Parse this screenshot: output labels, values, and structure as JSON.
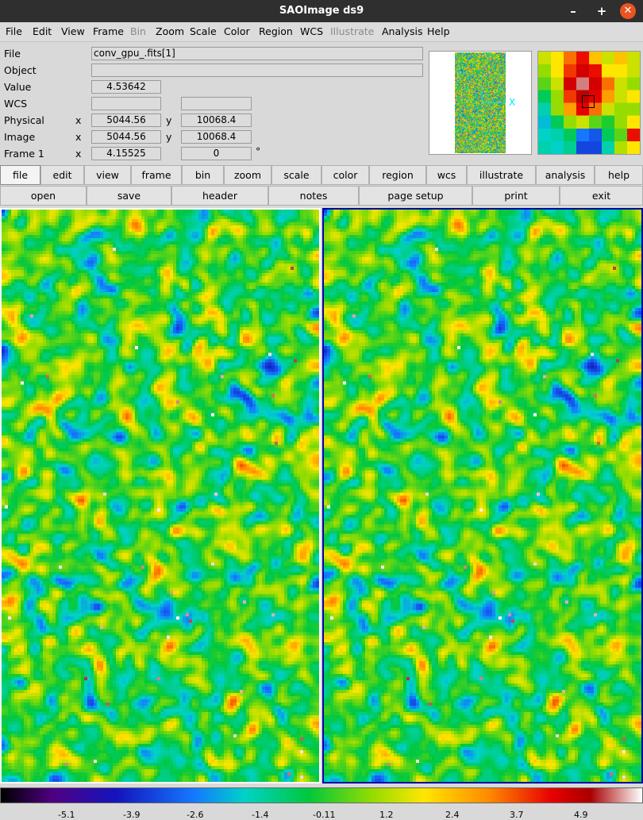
{
  "window": {
    "title": "SAOImage ds9",
    "minimize_label": "–",
    "maximize_label": "+",
    "close_label": "✕"
  },
  "menubar": [
    "File",
    "Edit",
    "View",
    "Frame",
    "Bin",
    "Zoom",
    "Scale",
    "Color",
    "Region",
    "WCS",
    "Illustrate",
    "Analysis",
    "Help"
  ],
  "disabled_menus": [
    "Bin",
    "Illustrate"
  ],
  "info": {
    "file_label": "File",
    "file_value": "conv_gpu_.fits[1]",
    "object_label": "Object",
    "object_value": "",
    "value_label": "Value",
    "value_value": "4.53642",
    "wcs_label": "WCS",
    "wcs_value1": "",
    "wcs_value2": "",
    "physical_label": "Physical",
    "physical_x": "5044.56",
    "physical_y": "10068.4",
    "image_label": "Image",
    "image_x": "5044.56",
    "image_y": "10068.4",
    "frame_label": "Frame 1",
    "frame_x": "4.15525",
    "frame_y": "0",
    "x_label": "x",
    "y_label": "y",
    "degree_symbol": "°"
  },
  "panner": {
    "compass_label": "X"
  },
  "button_bar_1": [
    "file",
    "edit",
    "view",
    "frame",
    "bin",
    "zoom",
    "scale",
    "color",
    "region",
    "wcs",
    "illustrate",
    "analysis",
    "help"
  ],
  "button_bar_2": [
    "open",
    "save",
    "header",
    "notes",
    "page setup",
    "print",
    "exit"
  ],
  "active_button": "file",
  "colorbar": {
    "colormap": "jet-like",
    "tick_labels": [
      "-5.1",
      "-3.9",
      "-2.6",
      "-1.4",
      "-0.11",
      "1.2",
      "2.4",
      "3.7",
      "4.9"
    ]
  },
  "colors": {
    "titlebar": "#2f2f2f",
    "close_button": "#e95420",
    "frame_active_border": "#0000aa",
    "frame_inactive_border": "#ffffff"
  }
}
